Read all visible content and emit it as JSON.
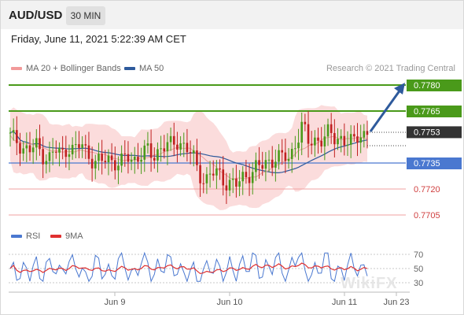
{
  "header": {
    "symbol": "AUD/USD",
    "interval": "30 MIN"
  },
  "datetime": "Friday, June 11, 2021 5:22:39 AM CET",
  "legend": {
    "main": [
      {
        "label": "MA 20 + Bollinger Bands",
        "color": "#f29a9a"
      },
      {
        "label": "MA 50",
        "color": "#2e5a9c"
      }
    ],
    "rsi": [
      {
        "label": "RSI",
        "color": "#4a78d0"
      },
      {
        "label": "9MA",
        "color": "#e03030"
      }
    ]
  },
  "credit": "Research © 2021 Trading Central",
  "watermark": "WikiFX",
  "colors": {
    "resistance": "#4a9a1a",
    "pivot": "#4a78d0",
    "support": "#f0a0a0",
    "up": "#4a9a1a",
    "down": "#c02020",
    "arrow": "#2e5a9c",
    "current": "#333333"
  },
  "chart_data": {
    "type": "candlestick",
    "symbol": "AUD/USD",
    "timeframe": "30 MIN",
    "x_labels": [
      "Jun 9",
      "Jun 10",
      "Jun 11",
      "Jun 23"
    ],
    "ylim": [
      0.77,
      0.7782
    ],
    "levels": [
      {
        "value": "0.7780",
        "kind": "target"
      },
      {
        "value": "0.7765",
        "kind": "resistance"
      },
      {
        "value": "0.7753",
        "kind": "current"
      },
      {
        "value": "0.7735",
        "kind": "pivot"
      },
      {
        "value": "0.7720",
        "kind": "support"
      },
      {
        "value": "0.7705",
        "kind": "support"
      }
    ],
    "forecast": {
      "from": 0.7753,
      "to": 0.778
    },
    "price_path": [
      0.775,
      0.7748,
      0.7744,
      0.7742,
      0.7745,
      0.774,
      0.7738,
      0.7742,
      0.774,
      0.7745,
      0.7742,
      0.7746,
      0.774,
      0.7736,
      0.7735,
      0.7738,
      0.7736,
      0.7735,
      0.7738,
      0.7737,
      0.774,
      0.7742,
      0.7738,
      0.7744,
      0.7746,
      0.7744,
      0.7748,
      0.7745,
      0.774,
      0.7728,
      0.7726,
      0.773,
      0.7728,
      0.7724,
      0.7725,
      0.7722,
      0.7726,
      0.773,
      0.7734,
      0.7732,
      0.7736,
      0.774,
      0.7738,
      0.7736,
      0.7748,
      0.7758,
      0.7745,
      0.7748,
      0.775,
      0.7752,
      0.7748,
      0.775,
      0.7748,
      0.7746,
      0.7752,
      0.7753
    ],
    "rsi": {
      "labels": [
        "70",
        "50",
        "30"
      ],
      "levels": [
        70,
        50,
        30
      ],
      "last": 52
    }
  }
}
